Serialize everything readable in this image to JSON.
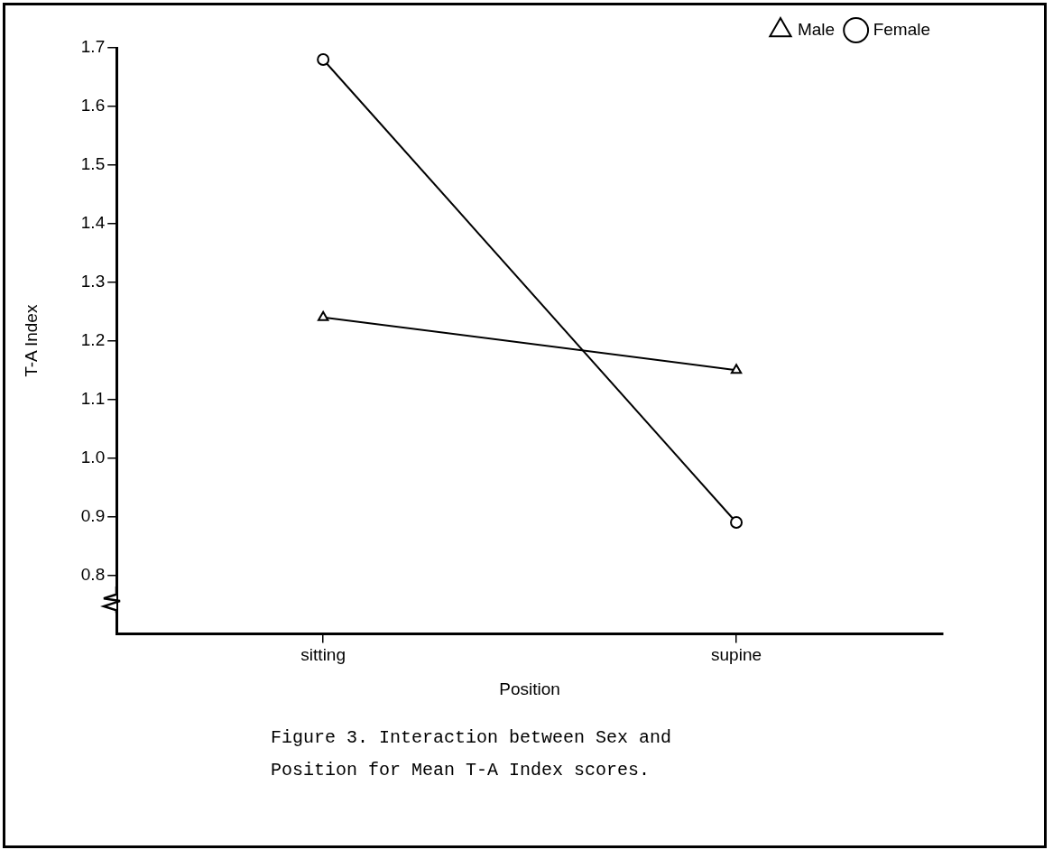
{
  "chart_data": {
    "type": "line",
    "xlabel": "Position",
    "ylabel": "T-A Index",
    "categories": [
      "sitting",
      "supine"
    ],
    "series": [
      {
        "name": "Male",
        "color": "#000000",
        "marker": "triangle",
        "values": [
          1.24,
          1.15
        ]
      },
      {
        "name": "Female",
        "color": "#000000",
        "marker": "circle",
        "values": [
          1.68,
          0.89
        ]
      }
    ],
    "ylim": [
      0.7,
      1.7
    ],
    "yticks": [
      0.8,
      0.9,
      {
        "value": 1,
        "label": "1.0"
      },
      1.1,
      1.2,
      1.3,
      1.4,
      1.5,
      1.6,
      1.7
    ],
    "grid": false,
    "legend": "top right",
    "line_style": "solid",
    "annotations": [
      "Figure 3.  Interaction between Sex and Position for Mean T-A Index scores."
    ]
  }
}
